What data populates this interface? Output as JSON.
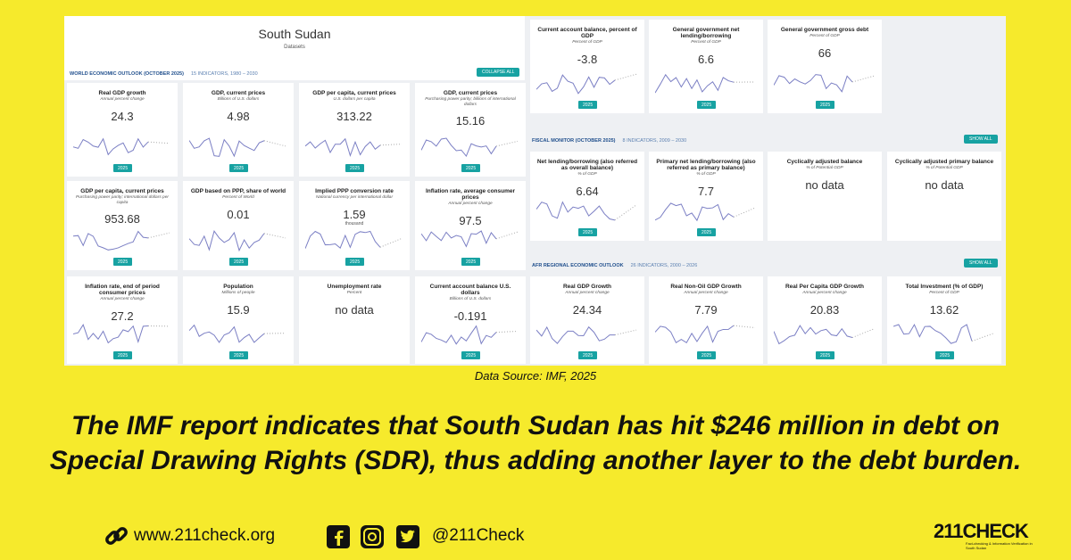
{
  "screenshot": {
    "country": "South Sudan",
    "subtitle": "Datasets",
    "sections": [
      {
        "name": "WORLD ECONOMIC OUTLOOK (OCTOBER 2025)",
        "info": "15 INDICATORS, 1980 – 2030",
        "button": "COLLAPSE ALL",
        "cards": [
          {
            "title": "Real GDP growth",
            "unit": "Annual percent change",
            "value": "24.3",
            "year": "2025"
          },
          {
            "title": "GDP, current prices",
            "unit": "Billions of U.S. dollars",
            "value": "4.98",
            "year": "2025"
          },
          {
            "title": "GDP per capita, current prices",
            "unit": "U.S. dollars per capita",
            "value": "313.22",
            "year": "2025"
          },
          {
            "title": "GDP, current prices",
            "unit": "Purchasing power parity; billions of international dollars",
            "value": "15.16",
            "year": "2025"
          },
          {
            "title": "GDP per capita, current prices",
            "unit": "Purchasing power parity; international dollars per capita",
            "value": "953.68",
            "year": "2025"
          },
          {
            "title": "GDP based on PPP, share of world",
            "unit": "Percent of World",
            "value": "0.01",
            "year": "2025"
          },
          {
            "title": "Implied PPP conversion rate",
            "unit": "National currency per international dollar",
            "value": "1.59",
            "scale": "thousand",
            "year": "2025"
          },
          {
            "title": "Inflation rate, average consumer prices",
            "unit": "Annual percent change",
            "value": "97.5",
            "year": "2025"
          },
          {
            "title": "Inflation rate, end of period consumer prices",
            "unit": "Annual percent change",
            "value": "27.2",
            "year": "2025"
          },
          {
            "title": "Population",
            "unit": "Millions of people",
            "value": "15.9",
            "year": "2025"
          },
          {
            "title": "Unemployment rate",
            "unit": "Percent",
            "value": "no data"
          },
          {
            "title": "Current account balance U.S. dollars",
            "unit": "Billions of U.S. dollars",
            "value": "-0.191",
            "year": "2025"
          },
          {
            "title": "Current account balance, percent of GDP",
            "unit": "Percent of GDP",
            "value": "-3.8",
            "year": "2025"
          },
          {
            "title": "General government net lending/borrowing",
            "unit": "Percent of GDP",
            "value": "6.6",
            "year": "2025"
          },
          {
            "title": "General government gross debt",
            "unit": "Percent of GDP",
            "value": "66",
            "year": "2025"
          }
        ]
      },
      {
        "name": "FISCAL MONITOR (OCTOBER 2025)",
        "info": "8 INDICATORS, 2009 – 2030",
        "button": "SHOW ALL",
        "cards": [
          {
            "title": "Net lending/borrowing (also referred as overall balance)",
            "unit": "% of GDP",
            "value": "6.64",
            "year": "2025"
          },
          {
            "title": "Primary net lending/borrowing (also referred as primary balance)",
            "unit": "% of GDP",
            "value": "7.7",
            "year": "2025"
          },
          {
            "title": "Cyclically adjusted balance",
            "unit": "% of Potential GDP",
            "value": "no data"
          },
          {
            "title": "Cyclically adjusted primary balance",
            "unit": "% of Potential GDP",
            "value": "no data"
          }
        ]
      },
      {
        "name": "AFR REGIONAL ECONOMIC OUTLOOK",
        "info": "26 INDICATORS, 2000 – 2026",
        "button": "SHOW ALL",
        "cards": [
          {
            "title": "Real GDP Growth",
            "unit": "Annual percent change",
            "value": "24.34",
            "year": "2025"
          },
          {
            "title": "Real Non-Oil GDP Growth",
            "unit": "Annual percent change",
            "value": "7.79",
            "year": "2025"
          },
          {
            "title": "Real Per Capita GDP Growth",
            "unit": "Annual percent change",
            "value": "20.83",
            "year": "2025"
          },
          {
            "title": "Total Investment (% of GDP)",
            "unit": "Percent of GDP",
            "value": "13.62",
            "year": "2025"
          }
        ]
      }
    ]
  },
  "source": "Data Source: IMF, 2025",
  "headline": [
    "The IMF report indicates that South Sudan has hit $246 million in debt on",
    "Special Drawing Rights (SDR), thus adding another layer to the debt burden."
  ],
  "footer": {
    "website": "www.211check.org",
    "handle": "@211Check",
    "logo": "211CHECK",
    "tagline": "Fact-checking & Information Verification in South Sudan"
  }
}
